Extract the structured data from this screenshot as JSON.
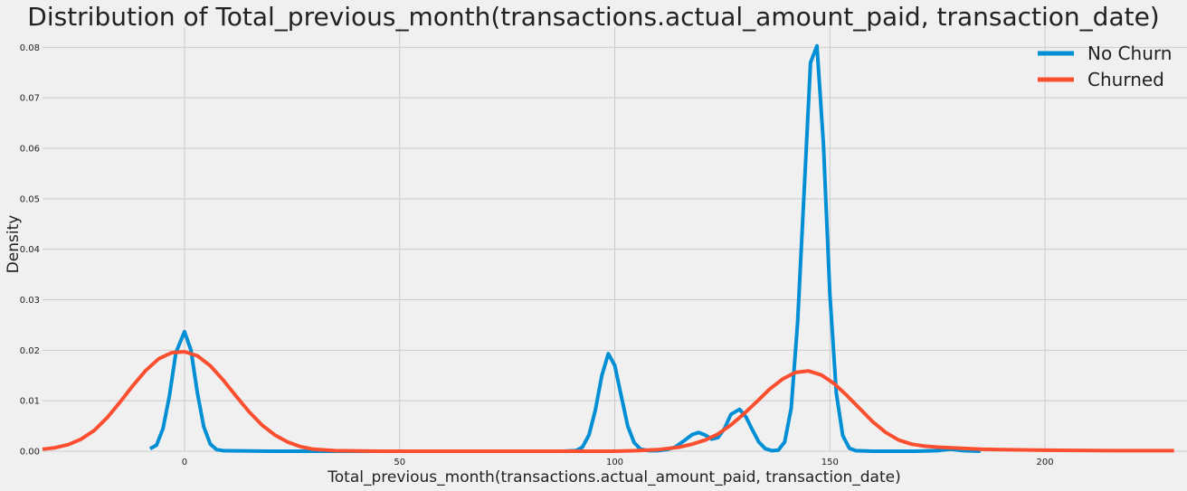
{
  "chart_data": {
    "type": "line",
    "title": "Distribution of Total_previous_month(transactions.actual_amount_paid, transaction_date)",
    "xlabel": "Total_previous_month(transactions.actual_amount_paid, transaction_date)",
    "ylabel": "Density",
    "xlim": [
      -33,
      233
    ],
    "ylim": [
      0,
      0.084
    ],
    "xticks": [
      0,
      50,
      100,
      150,
      200
    ],
    "xtick_labels": [
      "0",
      "50",
      "100",
      "150",
      "200"
    ],
    "yticks": [
      0,
      0.01,
      0.02,
      0.03,
      0.04,
      0.05,
      0.06,
      0.07,
      0.08
    ],
    "ytick_labels": [
      "0.00",
      "0.01",
      "0.02",
      "0.03",
      "0.04",
      "0.05",
      "0.06",
      "0.07",
      "0.08"
    ],
    "grid": true,
    "legend_position": "top-right",
    "series": [
      {
        "name": "No Churn",
        "color": "#008fd5",
        "points": [
          [
            -8,
            0.0005
          ],
          [
            -6.5,
            0.0012
          ],
          [
            -5,
            0.0045
          ],
          [
            -3.5,
            0.011
          ],
          [
            -2,
            0.0195
          ],
          [
            0,
            0.0237
          ],
          [
            1.5,
            0.02
          ],
          [
            3,
            0.0115
          ],
          [
            4.5,
            0.0048
          ],
          [
            6,
            0.0014
          ],
          [
            7.5,
            0.0003
          ],
          [
            9,
            0.0001
          ],
          [
            20,
            0
          ],
          [
            60,
            0
          ],
          [
            88,
            0
          ],
          [
            91,
            0.0001
          ],
          [
            92.5,
            0.0008
          ],
          [
            94,
            0.0032
          ],
          [
            95.5,
            0.0082
          ],
          [
            97,
            0.015
          ],
          [
            98.5,
            0.0193
          ],
          [
            100,
            0.017
          ],
          [
            101.5,
            0.011
          ],
          [
            103,
            0.005
          ],
          [
            104.5,
            0.0017
          ],
          [
            106,
            0.0004
          ],
          [
            108,
            0.0001
          ],
          [
            110,
            0.0001
          ],
          [
            112,
            0.0003
          ],
          [
            114,
            0.0008
          ],
          [
            116,
            0.002
          ],
          [
            118,
            0.0033
          ],
          [
            119.5,
            0.0037
          ],
          [
            121,
            0.0032
          ],
          [
            122.5,
            0.0024
          ],
          [
            124,
            0.0027
          ],
          [
            125.5,
            0.0045
          ],
          [
            127,
            0.0073
          ],
          [
            129,
            0.0083
          ],
          [
            130.5,
            0.0068
          ],
          [
            132,
            0.0042
          ],
          [
            133.5,
            0.0018
          ],
          [
            135,
            0.0005
          ],
          [
            136.5,
            0.0001
          ],
          [
            138,
            0.0002
          ],
          [
            139.5,
            0.0018
          ],
          [
            141,
            0.0085
          ],
          [
            142.5,
            0.0255
          ],
          [
            144,
            0.051
          ],
          [
            145.5,
            0.077
          ],
          [
            147,
            0.0803
          ],
          [
            148.5,
            0.061
          ],
          [
            150,
            0.031
          ],
          [
            151.5,
            0.0115
          ],
          [
            153,
            0.0031
          ],
          [
            154.5,
            0.0006
          ],
          [
            156,
            0.0001
          ],
          [
            160,
            0
          ],
          [
            170,
            0
          ],
          [
            175,
            0.0001
          ],
          [
            178,
            0.0004
          ],
          [
            181,
            0.0001
          ],
          [
            185,
            0
          ]
        ]
      },
      {
        "name": "Churned",
        "color": "#fc4f30",
        "points": [
          [
            -33,
            0.0004
          ],
          [
            -30,
            0.0007
          ],
          [
            -27,
            0.0013
          ],
          [
            -24,
            0.0024
          ],
          [
            -21,
            0.0041
          ],
          [
            -18,
            0.0066
          ],
          [
            -15,
            0.0097
          ],
          [
            -12,
            0.013
          ],
          [
            -9,
            0.016
          ],
          [
            -6,
            0.0183
          ],
          [
            -3,
            0.0195
          ],
          [
            0,
            0.0197
          ],
          [
            3,
            0.0189
          ],
          [
            6,
            0.0169
          ],
          [
            9,
            0.0141
          ],
          [
            12,
            0.0109
          ],
          [
            15,
            0.0078
          ],
          [
            18,
            0.0052
          ],
          [
            21,
            0.0032
          ],
          [
            24,
            0.0018
          ],
          [
            27,
            0.0009
          ],
          [
            30,
            0.0004
          ],
          [
            35,
            0.0001
          ],
          [
            45,
            0
          ],
          [
            80,
            0
          ],
          [
            100,
            0
          ],
          [
            105,
            0.0001
          ],
          [
            110,
            0.0003
          ],
          [
            115,
            0.0008
          ],
          [
            118,
            0.0014
          ],
          [
            121,
            0.0022
          ],
          [
            124,
            0.0034
          ],
          [
            127,
            0.0052
          ],
          [
            130,
            0.0074
          ],
          [
            133,
            0.0098
          ],
          [
            136,
            0.0123
          ],
          [
            139,
            0.0143
          ],
          [
            142,
            0.0156
          ],
          [
            145,
            0.0159
          ],
          [
            148,
            0.0151
          ],
          [
            151,
            0.0134
          ],
          [
            154,
            0.011
          ],
          [
            157,
            0.0084
          ],
          [
            160,
            0.0058
          ],
          [
            163,
            0.0037
          ],
          [
            166,
            0.0022
          ],
          [
            169,
            0.0014
          ],
          [
            172,
            0.001
          ],
          [
            175,
            0.0008
          ],
          [
            180,
            0.0006
          ],
          [
            185,
            0.0004
          ],
          [
            190,
            0.0003
          ],
          [
            200,
            0.0002
          ],
          [
            215,
            0.0001
          ],
          [
            230,
            0.0001
          ]
        ]
      }
    ]
  }
}
